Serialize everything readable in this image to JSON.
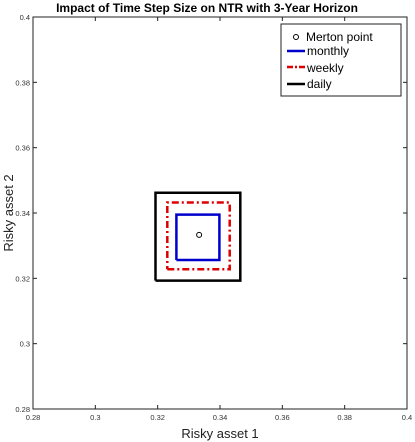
{
  "chart_data": {
    "type": "line",
    "title": "Impact of Time Step Size on NTR with 3-Year Horizon",
    "xlabel": "Risky asset 1",
    "ylabel": "Risky asset 2",
    "xlim": [
      0.28,
      0.4
    ],
    "ylim": [
      0.28,
      0.4
    ],
    "xticks": [
      0.28,
      0.3,
      0.32,
      0.34,
      0.36,
      0.38,
      0.4
    ],
    "yticks": [
      0.28,
      0.3,
      0.32,
      0.34,
      0.36,
      0.38,
      0.4
    ],
    "xtick_labels": [
      "0.28",
      "0.3",
      "0.32",
      "0.34",
      "0.36",
      "0.38",
      "0.4"
    ],
    "ytick_labels": [
      "0.28",
      "0.3",
      "0.32",
      "0.34",
      "0.36",
      "0.38",
      "0.4"
    ],
    "grid": false,
    "legend_position": "top-right",
    "merton_point": {
      "name": "Merton point",
      "x": 0.3333,
      "y": 0.3333
    },
    "series": [
      {
        "name": "monthly",
        "color": "#0000cc",
        "style": "solid",
        "x": [
          0.326,
          0.3398,
          0.3398,
          0.326,
          0.326
        ],
        "y": [
          0.3256,
          0.3256,
          0.3395,
          0.3395,
          0.3256
        ]
      },
      {
        "name": "weekly",
        "color": "#dd0000",
        "style": "dashdot",
        "x": [
          0.3231,
          0.3431,
          0.3431,
          0.3231,
          0.3231
        ],
        "y": [
          0.3228,
          0.3228,
          0.3432,
          0.3432,
          0.3228
        ]
      },
      {
        "name": "daily",
        "color": "#000000",
        "style": "solid",
        "x": [
          0.3193,
          0.3465,
          0.3465,
          0.3193,
          0.3193
        ],
        "y": [
          0.3193,
          0.3193,
          0.3462,
          0.3462,
          0.3193
        ]
      }
    ]
  }
}
